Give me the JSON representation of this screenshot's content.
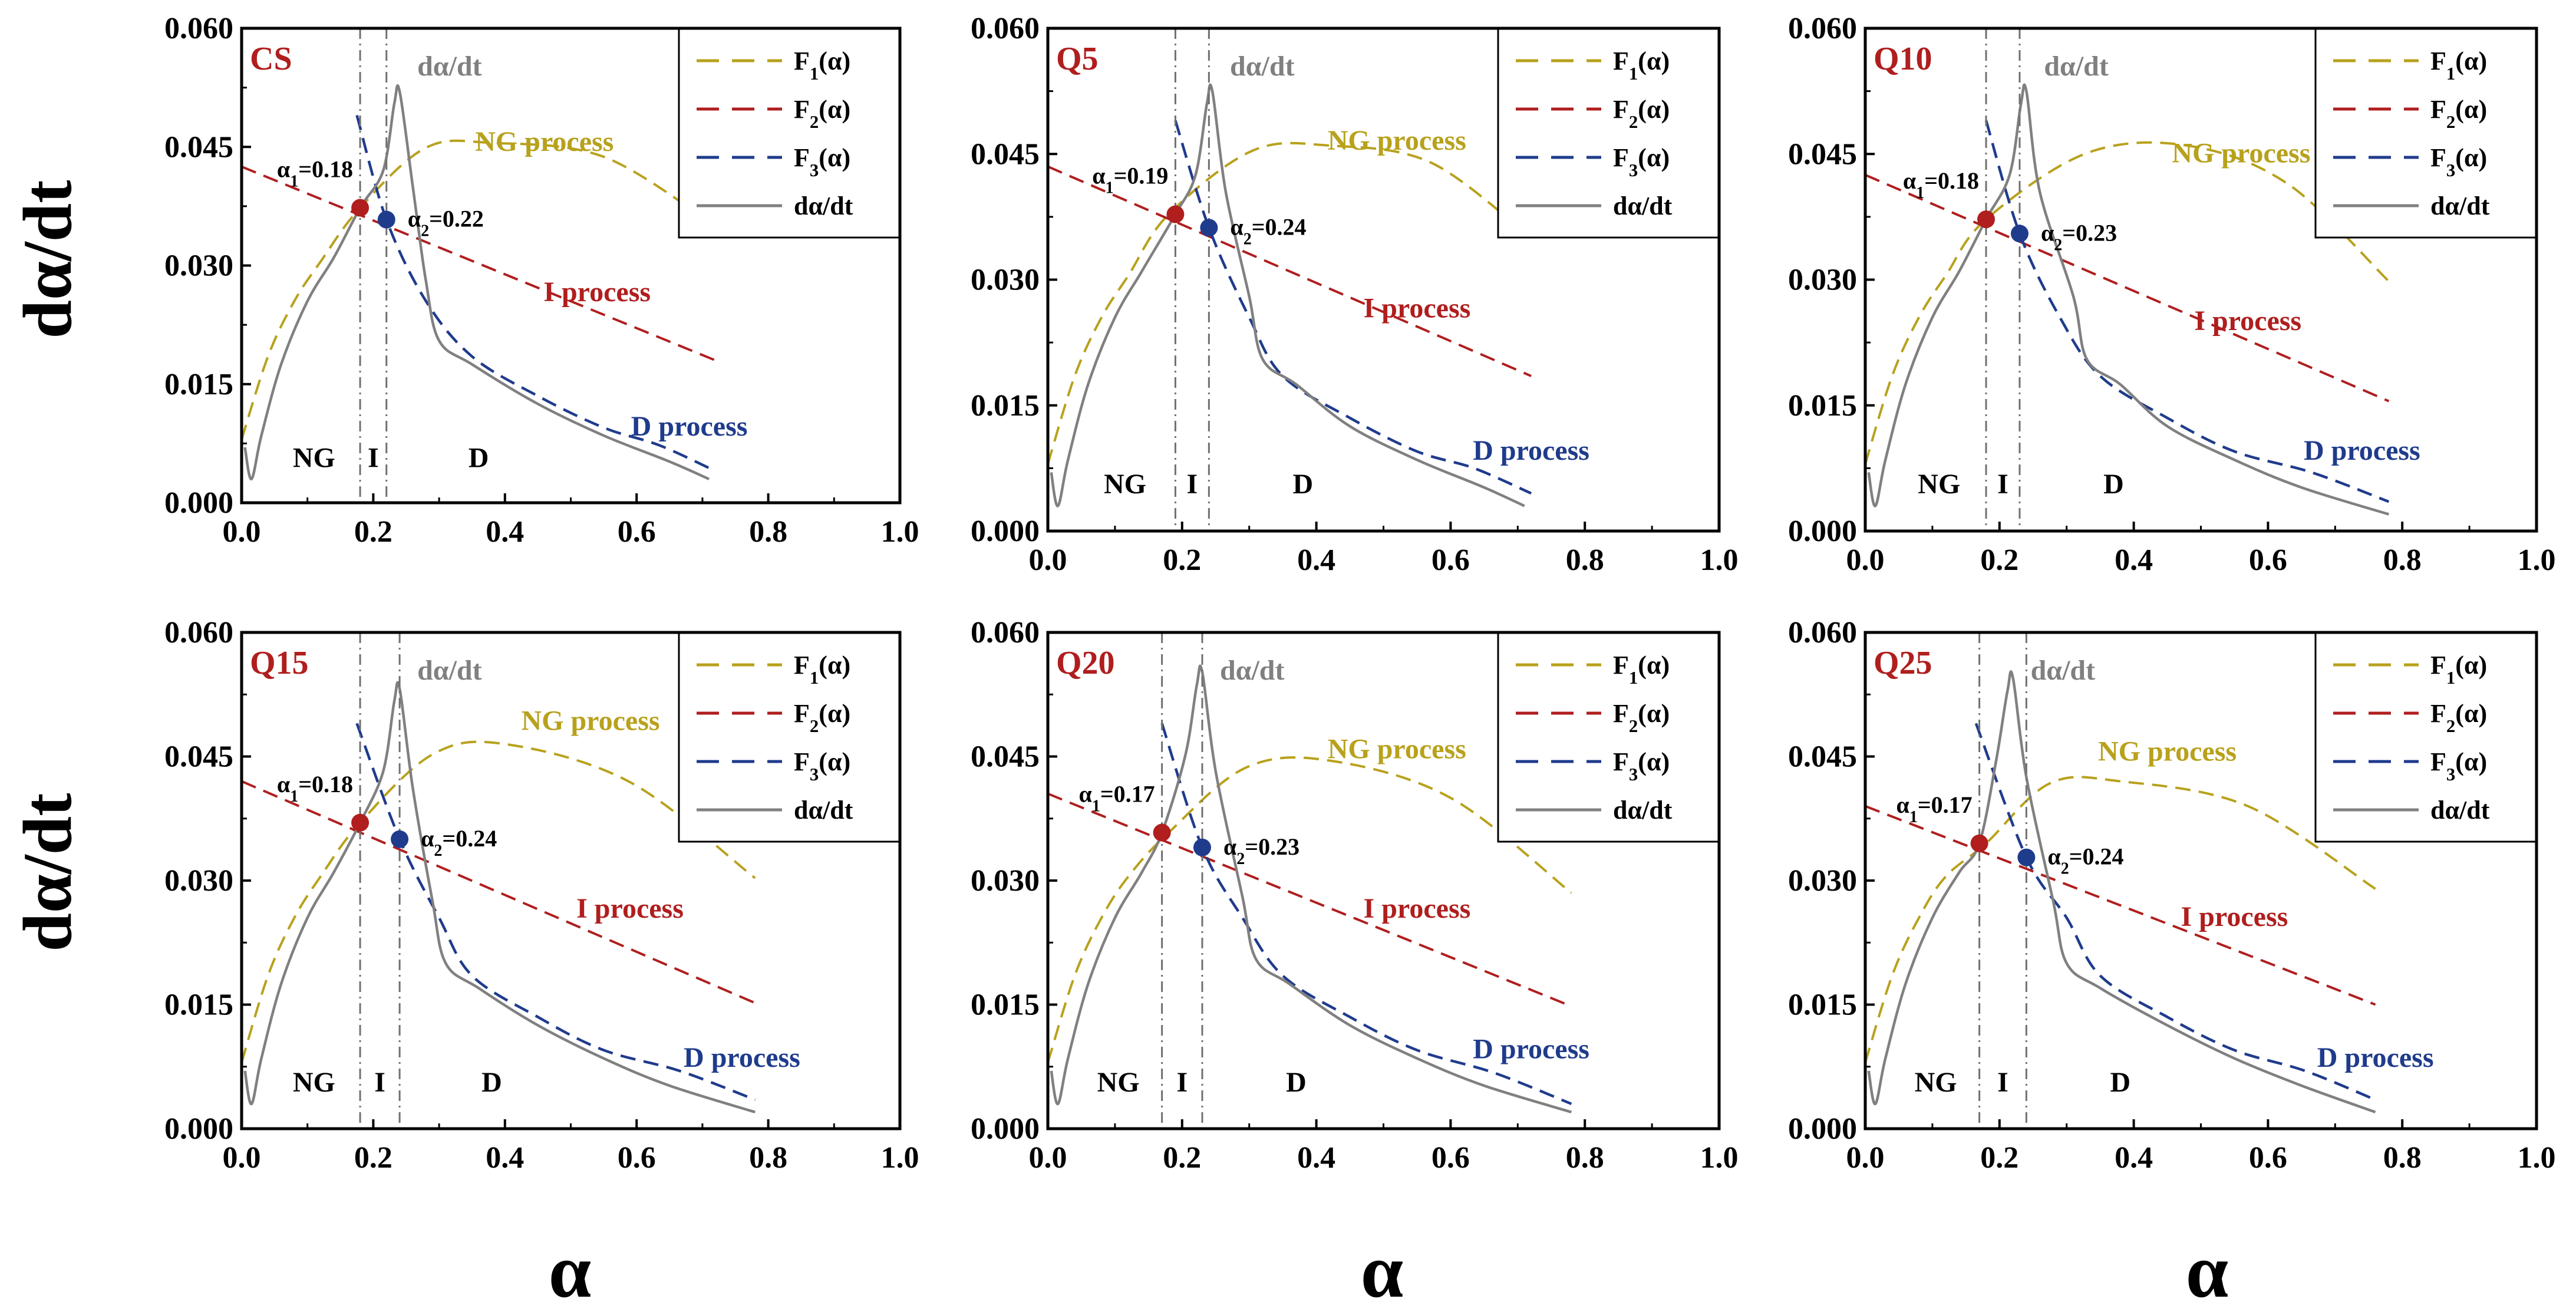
{
  "figure": {
    "ylabel": "dα/dt",
    "xlabel": "α",
    "colors": {
      "F1": "#b8a11c",
      "F2": "#b01e1e",
      "F3": "#1f3b8c",
      "measured": "#808080",
      "guide": "#707070",
      "panel_label": "#b01e1e",
      "axis": "#000000"
    }
  },
  "chart_data": [
    {
      "type": "line",
      "title": "CS",
      "xlim": [
        0,
        1.0
      ],
      "ylim": [
        0,
        0.06
      ],
      "xticks": [
        "0.0",
        "0.2",
        "0.4",
        "0.6",
        "0.8",
        "1.0"
      ],
      "yticks": [
        "0.000",
        "0.015",
        "0.030",
        "0.045",
        "0.060"
      ],
      "legend": [
        "F1(α)",
        "F2(α)",
        "F3(α)",
        "dα/dt"
      ],
      "curve_label": "dα/dt",
      "process_labels": {
        "NG": "NG process",
        "I": "I process",
        "D": "D process"
      },
      "zone_labels": [
        "NG",
        "I",
        "D"
      ],
      "alpha1": 0.18,
      "alpha2": 0.22,
      "alpha1_label": "=0.18",
      "alpha2_label": "=0.22",
      "point1": [
        0.18,
        0.0373
      ],
      "point2": [
        0.22,
        0.0358
      ],
      "f1_peak": [
        0.38,
        0.0455
      ],
      "f1_end": [
        0.72,
        0.035
      ],
      "label_NG": [
        0.46,
        0.0445
      ],
      "f2_line": [
        [
          0.0,
          0.0425
        ],
        [
          0.72,
          0.018
        ]
      ],
      "label_I": [
        0.54,
        0.0255
      ],
      "f3_start": 0.175,
      "f3_end": [
        0.72,
        0.004
      ],
      "label_D": [
        0.68,
        0.0085
      ],
      "peak": [
        0.24,
        0.052
      ],
      "shoulder": [
        0.3,
        0.019
      ],
      "end": [
        0.71,
        0.003
      ]
    },
    {
      "type": "line",
      "title": "Q5",
      "xlim": [
        0,
        1.0
      ],
      "ylim": [
        0,
        0.06
      ],
      "xticks": [
        "0.0",
        "0.2",
        "0.4",
        "0.6",
        "0.8",
        "1.0"
      ],
      "yticks": [
        "0.000",
        "0.015",
        "0.030",
        "0.045",
        "0.060"
      ],
      "legend": [
        "F1(α)",
        "F2(α)",
        "F3(α)",
        "dα/dt"
      ],
      "curve_label": "dα/dt",
      "process_labels": {
        "NG": "NG process",
        "I": "I process",
        "D": "D process"
      },
      "zone_labels": [
        "NG",
        "I",
        "D"
      ],
      "alpha1": 0.19,
      "alpha2": 0.24,
      "alpha1_label": "=0.19",
      "alpha2_label": "=0.24",
      "point1": [
        0.19,
        0.0378
      ],
      "point2": [
        0.24,
        0.0362
      ],
      "f1_peak": [
        0.42,
        0.046
      ],
      "f1_end": [
        0.72,
        0.035
      ],
      "label_NG": [
        0.52,
        0.0455
      ],
      "f2_line": [
        [
          0.0,
          0.0435
        ],
        [
          0.72,
          0.0185
        ]
      ],
      "label_I": [
        0.55,
        0.0255
      ],
      "f3_start": 0.19,
      "f3_end": [
        0.72,
        0.0045
      ],
      "label_D": [
        0.72,
        0.0085
      ],
      "peak": [
        0.245,
        0.0525
      ],
      "shoulder": [
        0.32,
        0.019
      ],
      "end": [
        0.71,
        0.003
      ]
    },
    {
      "type": "line",
      "title": "Q10",
      "xlim": [
        0,
        1.0
      ],
      "ylim": [
        0,
        0.06
      ],
      "xticks": [
        "0.0",
        "0.2",
        "0.4",
        "0.6",
        "0.8",
        "1.0"
      ],
      "yticks": [
        "0.000",
        "0.015",
        "0.030",
        "0.045",
        "0.060"
      ],
      "legend": [
        "F1(α)",
        "F2(α)",
        "F3(α)",
        "dα/dt"
      ],
      "curve_label": "dα/dt",
      "process_labels": {
        "NG": "NG process",
        "I": "I process",
        "D": "D process"
      },
      "zone_labels": [
        "NG",
        "I",
        "D"
      ],
      "alpha1": 0.18,
      "alpha2": 0.23,
      "alpha1_label": "=0.18",
      "alpha2_label": "=0.23",
      "point1": [
        0.18,
        0.0372
      ],
      "point2": [
        0.23,
        0.0355
      ],
      "f1_peak": [
        0.48,
        0.046
      ],
      "f1_end": [
        0.78,
        0.0298
      ],
      "label_NG": [
        0.56,
        0.044
      ],
      "f2_line": [
        [
          0.0,
          0.0425
        ],
        [
          0.78,
          0.0155
        ]
      ],
      "label_I": [
        0.57,
        0.024
      ],
      "f3_start": 0.18,
      "f3_end": [
        0.78,
        0.0035
      ],
      "label_D": [
        0.74,
        0.0085
      ],
      "peak": [
        0.24,
        0.0525
      ],
      "shoulder": [
        0.33,
        0.019
      ],
      "end": [
        0.78,
        0.002
      ]
    },
    {
      "type": "line",
      "title": "Q15",
      "xlim": [
        0,
        1.0
      ],
      "ylim": [
        0,
        0.06
      ],
      "xticks": [
        "0.0",
        "0.2",
        "0.4",
        "0.6",
        "0.8",
        "1.0"
      ],
      "yticks": [
        "0.000",
        "0.015",
        "0.030",
        "0.045",
        "0.060"
      ],
      "legend": [
        "F1(α)",
        "F2(α)",
        "F3(α)",
        "dα/dt"
      ],
      "curve_label": "dα/dt",
      "process_labels": {
        "NG": "NG process",
        "I": "I process",
        "D": "D process"
      },
      "zone_labels": [
        "NG",
        "I",
        "D"
      ],
      "alpha1": 0.18,
      "alpha2": 0.24,
      "alpha1_label": "=0.18",
      "alpha2_label": "=0.24",
      "point1": [
        0.18,
        0.037
      ],
      "point2": [
        0.24,
        0.035
      ],
      "f1_peak": [
        0.4,
        0.0465
      ],
      "f1_end": [
        0.78,
        0.0303
      ],
      "label_NG": [
        0.53,
        0.0482
      ],
      "f2_line": [
        [
          0.0,
          0.042
        ],
        [
          0.78,
          0.0152
        ]
      ],
      "label_I": [
        0.59,
        0.0255
      ],
      "f3_start": 0.175,
      "f3_end": [
        0.78,
        0.0035
      ],
      "label_D": [
        0.76,
        0.0075
      ],
      "peak": [
        0.24,
        0.0532
      ],
      "shoulder": [
        0.31,
        0.0185
      ],
      "end": [
        0.78,
        0.002
      ]
    },
    {
      "type": "line",
      "title": "Q20",
      "xlim": [
        0,
        1.0
      ],
      "ylim": [
        0,
        0.06
      ],
      "xticks": [
        "0.0",
        "0.2",
        "0.4",
        "0.6",
        "0.8",
        "1.0"
      ],
      "yticks": [
        "0.000",
        "0.015",
        "0.030",
        "0.045",
        "0.060"
      ],
      "legend": [
        "F1(α)",
        "F2(α)",
        "F3(α)",
        "dα/dt"
      ],
      "curve_label": "dα/dt",
      "process_labels": {
        "NG": "NG process",
        "I": "I process",
        "D": "D process"
      },
      "zone_labels": [
        "NG",
        "I",
        "D"
      ],
      "alpha1": 0.17,
      "alpha2": 0.23,
      "alpha1_label": "=0.17",
      "alpha2_label": "=0.23",
      "point1": [
        0.17,
        0.0358
      ],
      "point2": [
        0.23,
        0.034
      ],
      "f1_peak": [
        0.42,
        0.0445
      ],
      "f1_end": [
        0.78,
        0.0285
      ],
      "label_NG": [
        0.52,
        0.0448
      ],
      "f2_line": [
        [
          0.0,
          0.0405
        ],
        [
          0.78,
          0.0148
        ]
      ],
      "label_I": [
        0.55,
        0.0255
      ],
      "f3_start": 0.17,
      "f3_end": [
        0.78,
        0.003
      ],
      "label_D": [
        0.72,
        0.0085
      ],
      "peak": [
        0.23,
        0.0552
      ],
      "shoulder": [
        0.31,
        0.019
      ],
      "end": [
        0.78,
        0.002
      ]
    },
    {
      "type": "line",
      "title": "Q25",
      "xlim": [
        0,
        1.0
      ],
      "ylim": [
        0,
        0.06
      ],
      "xticks": [
        "0.0",
        "0.2",
        "0.4",
        "0.6",
        "0.8",
        "1.0"
      ],
      "yticks": [
        "0.000",
        "0.015",
        "0.030",
        "0.045",
        "0.060"
      ],
      "legend": [
        "F1(α)",
        "F2(α)",
        "F3(α)",
        "dα/dt"
      ],
      "curve_label": "dα/dt",
      "process_labels": {
        "NG": "NG process",
        "I": "I process",
        "D": "D process"
      },
      "zone_labels": [
        "NG",
        "I",
        "D"
      ],
      "alpha1": 0.17,
      "alpha2": 0.24,
      "alpha1_label": "=0.17",
      "alpha2_label": "=0.24",
      "point1": [
        0.17,
        0.0345
      ],
      "point2": [
        0.24,
        0.0328
      ],
      "f1_peak": [
        0.38,
        0.042
      ],
      "f1_end": [
        0.76,
        0.029
      ],
      "label_NG": [
        0.45,
        0.0445
      ],
      "f2_line": [
        [
          0.0,
          0.039
        ],
        [
          0.76,
          0.015
        ]
      ],
      "label_I": [
        0.55,
        0.0245
      ],
      "f3_start": 0.165,
      "f3_end": [
        0.76,
        0.0035
      ],
      "label_D": [
        0.76,
        0.0075
      ],
      "peak": [
        0.22,
        0.0545
      ],
      "shoulder": [
        0.3,
        0.0185
      ],
      "end": [
        0.76,
        0.002
      ]
    }
  ]
}
